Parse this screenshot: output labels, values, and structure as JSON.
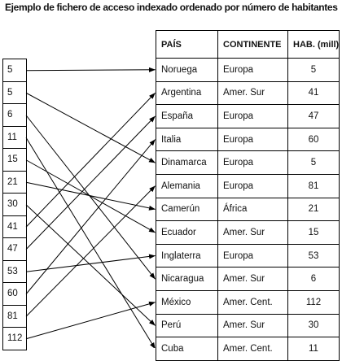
{
  "title": "Ejemplo de fichero de acceso indexado ordenado por número de habitantes",
  "headers": {
    "pais": "PAÍS",
    "continente": "CONTINENTE",
    "hab": "HAB. (mill)"
  },
  "index_values": [
    "5",
    "5",
    "6",
    "11",
    "15",
    "21",
    "30",
    "41",
    "47",
    "53",
    "60",
    "81",
    "112"
  ],
  "rows": [
    {
      "pais": "Noruega",
      "continente": "Europa",
      "hab": "5"
    },
    {
      "pais": "Argentina",
      "continente": "Amer. Sur",
      "hab": "41"
    },
    {
      "pais": "España",
      "continente": "Europa",
      "hab": "47"
    },
    {
      "pais": "Italia",
      "continente": "Europa",
      "hab": "60"
    },
    {
      "pais": "Dinamarca",
      "continente": "Europa",
      "hab": "5"
    },
    {
      "pais": "Alemania",
      "continente": "Europa",
      "hab": "81"
    },
    {
      "pais": "Camerún",
      "continente": "África",
      "hab": "21"
    },
    {
      "pais": "Ecuador",
      "continente": "Amer. Sur",
      "hab": "15"
    },
    {
      "pais": "Inglaterra",
      "continente": "Europa",
      "hab": "53"
    },
    {
      "pais": "Nicaragua",
      "continente": "Amer. Sur",
      "hab": "6"
    },
    {
      "pais": "México",
      "continente": "Amer. Cent.",
      "hab": "112"
    },
    {
      "pais": "Perú",
      "continente": "Amer. Sur",
      "hab": "30"
    },
    {
      "pais": "Cuba",
      "continente": "Amer. Cent.",
      "hab": "11"
    }
  ],
  "pointers": [
    0,
    4,
    9,
    12,
    7,
    6,
    11,
    1,
    2,
    8,
    3,
    5,
    10
  ]
}
